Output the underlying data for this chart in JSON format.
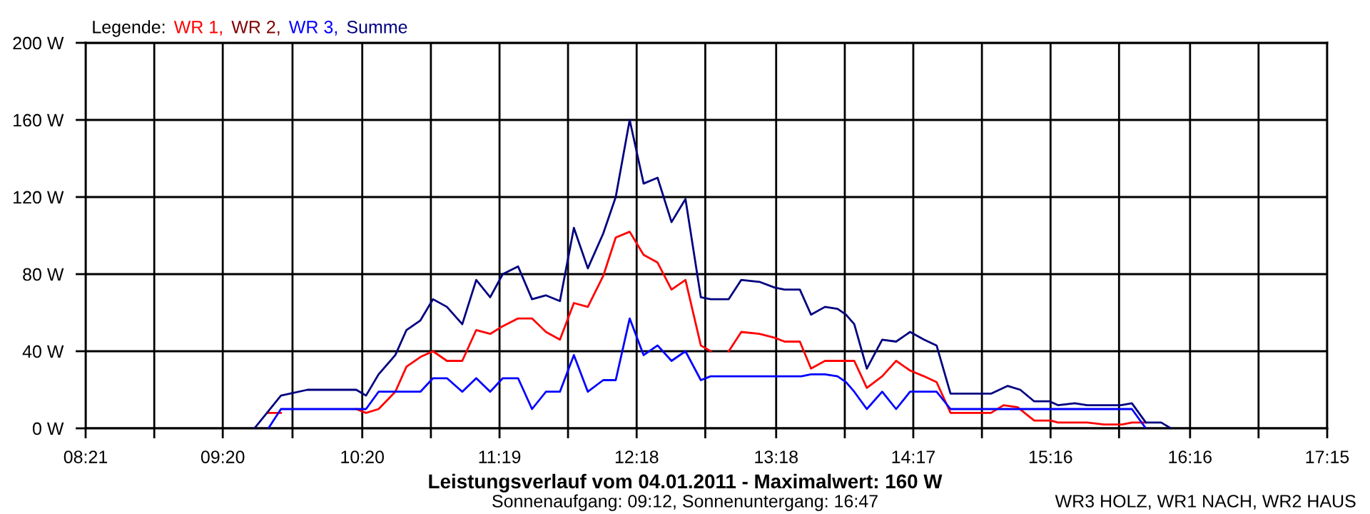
{
  "chart_data": {
    "type": "line",
    "title": "Leistungsverlauf vom 04.01.2011 - Maximalwert: 160 W",
    "subtitle": "Sonnenaufgang: 09:12, Sonnenuntergang: 16:47",
    "legend_title": "Legende:",
    "annotations": [
      "WR3 HOLZ, WR1 NACH, WR2 HAUS"
    ],
    "xlim": [
      8.35,
      17.25
    ],
    "xticks": [
      {
        "value": 8.35,
        "label": "08:21"
      },
      {
        "value": 8.842,
        "label": null
      },
      {
        "value": 9.333,
        "label": "09:20"
      },
      {
        "value": 9.833,
        "label": null
      },
      {
        "value": 10.333,
        "label": "10:20"
      },
      {
        "value": 10.825,
        "label": null
      },
      {
        "value": 11.317,
        "label": "11:19"
      },
      {
        "value": 11.808,
        "label": null
      },
      {
        "value": 12.3,
        "label": "12:18"
      },
      {
        "value": 12.792,
        "label": null
      },
      {
        "value": 13.3,
        "label": "13:18"
      },
      {
        "value": 13.792,
        "label": null
      },
      {
        "value": 14.283,
        "label": "14:17"
      },
      {
        "value": 14.775,
        "label": null
      },
      {
        "value": 15.267,
        "label": "15:16"
      },
      {
        "value": 15.758,
        "label": null
      },
      {
        "value": 16.267,
        "label": "16:16"
      },
      {
        "value": 16.758,
        "label": null
      },
      {
        "value": 17.25,
        "label": "17:15"
      }
    ],
    "ylim": [
      0,
      200
    ],
    "yticks": [
      {
        "value": 0,
        "label": "0 W"
      },
      {
        "value": 40,
        "label": "40 W"
      },
      {
        "value": 80,
        "label": "80 W"
      },
      {
        "value": 120,
        "label": "120 W"
      },
      {
        "value": 160,
        "label": "160 W"
      },
      {
        "value": 200,
        "label": "200 W"
      }
    ],
    "grid": true,
    "legend": "top left",
    "marker": "none",
    "line_style": "solid",
    "series": [
      {
        "name": "WR 1,",
        "color": "#ff0000",
        "x": [
          9.66,
          9.75,
          9.94,
          10.29,
          10.36,
          10.45,
          10.57,
          10.65,
          10.75,
          10.84,
          10.94,
          11.05,
          11.15,
          11.25,
          11.34,
          11.45,
          11.55,
          11.65,
          11.75,
          11.85,
          11.95,
          12.06,
          12.15,
          12.25,
          12.35,
          12.45,
          12.55,
          12.65,
          12.76,
          12.83,
          12.9,
          12.96,
          13.05,
          13.18,
          13.29,
          13.36,
          13.47,
          13.55,
          13.65,
          13.8,
          13.86,
          13.95,
          14.06,
          14.16,
          14.26,
          14.36,
          14.45,
          14.55,
          14.84,
          14.93,
          15.03,
          15.15,
          15.27,
          15.32,
          15.39,
          15.53,
          15.65,
          15.78,
          15.85,
          15.95
        ],
        "values": [
          8,
          8,
          null,
          10,
          8,
          10,
          19,
          32,
          37,
          40,
          35,
          35,
          51,
          49,
          53,
          57,
          57,
          50,
          46,
          65,
          63,
          79,
          99,
          102,
          90,
          86,
          72,
          77,
          43,
          40,
          null,
          40,
          50,
          49,
          47,
          45,
          45,
          31,
          35,
          35,
          35,
          21,
          27,
          35,
          30,
          27,
          24,
          8,
          8,
          12,
          11,
          4,
          4,
          3,
          3,
          3,
          2,
          2,
          3,
          3
        ]
      },
      {
        "name": "WR 2,",
        "color": "#800000"
      },
      {
        "name": "WR 3,",
        "color": "#0000ff",
        "x": [
          9.66,
          9.75,
          10.36,
          10.45,
          10.75,
          10.84,
          10.94,
          11.05,
          11.15,
          11.25,
          11.34,
          11.45,
          11.55,
          11.65,
          11.75,
          11.85,
          11.95,
          12.06,
          12.15,
          12.25,
          12.35,
          12.45,
          12.55,
          12.65,
          12.76,
          12.83,
          13.48,
          13.55,
          13.65,
          13.74,
          13.8,
          13.86,
          13.95,
          14.06,
          14.16,
          14.26,
          14.45,
          14.55,
          15.85,
          15.95
        ],
        "values": [
          0,
          10,
          10,
          19,
          19,
          26,
          26,
          19,
          26,
          19,
          26,
          26,
          10,
          19,
          19,
          38,
          19,
          25,
          25,
          57,
          38,
          43,
          35,
          40,
          25,
          27,
          27,
          28,
          28,
          27,
          24,
          19,
          10,
          19,
          10,
          19,
          19,
          10,
          10,
          0
        ]
      },
      {
        "name": "Summe",
        "color": "#000080",
        "x": [
          9.56,
          9.75,
          9.94,
          10.29,
          10.36,
          10.45,
          10.57,
          10.65,
          10.75,
          10.84,
          10.94,
          11.05,
          11.15,
          11.25,
          11.34,
          11.45,
          11.55,
          11.65,
          11.75,
          11.85,
          11.95,
          12.06,
          12.15,
          12.25,
          12.35,
          12.45,
          12.55,
          12.65,
          12.76,
          12.83,
          12.96,
          13.05,
          13.18,
          13.29,
          13.36,
          13.47,
          13.55,
          13.65,
          13.74,
          13.8,
          13.86,
          13.95,
          14.06,
          14.16,
          14.26,
          14.36,
          14.45,
          14.55,
          14.84,
          14.96,
          15.05,
          15.15,
          15.26,
          15.32,
          15.44,
          15.53,
          15.77,
          15.85,
          15.95,
          16.06,
          16.13
        ],
        "values": [
          0,
          17,
          20,
          20,
          17,
          28,
          38,
          51,
          56,
          67,
          63,
          54,
          77,
          68,
          80,
          84,
          67,
          69,
          66,
          104,
          83,
          101,
          120,
          160,
          127,
          130,
          107,
          119,
          68,
          67,
          67,
          77,
          76,
          73,
          72,
          72,
          59,
          63,
          62,
          59,
          54,
          31,
          46,
          45,
          50,
          46,
          43,
          18,
          18,
          22,
          20,
          14,
          14,
          12,
          13,
          12,
          12,
          13,
          3,
          3,
          0
        ]
      }
    ]
  }
}
